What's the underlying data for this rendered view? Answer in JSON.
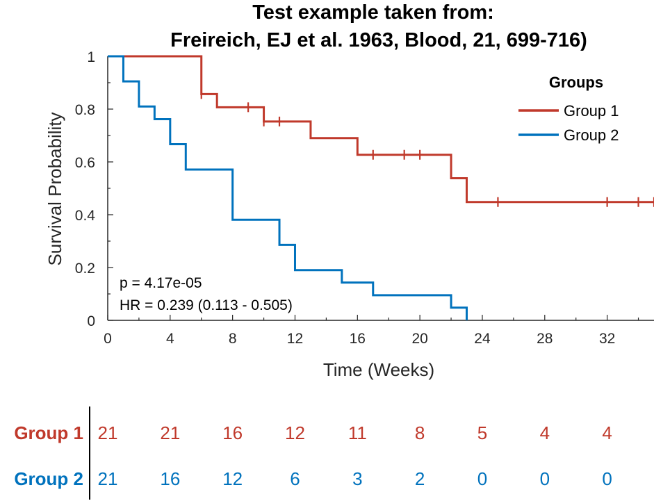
{
  "chart_data": {
    "type": "line",
    "subtype": "kaplan-meier",
    "title_line1": "Test example taken from:",
    "title_line2": "Freireich, EJ et al. 1963, Blood, 21, 699-716)",
    "xlabel": "Time (Weeks)",
    "ylabel": "Survival Probability",
    "xlim": [
      0,
      35
    ],
    "ylim": [
      0,
      1
    ],
    "xticks": [
      0,
      4,
      8,
      12,
      16,
      20,
      24,
      28,
      32
    ],
    "yticks": [
      0,
      0.2,
      0.4,
      0.6,
      0.8,
      1
    ],
    "grid": false,
    "legend": {
      "title": "Groups",
      "placement": "top-right"
    },
    "annotations": [
      "p = 4.17e-05",
      "HR = 0.239 (0.113 - 0.505)"
    ],
    "series": [
      {
        "name": "Group 1",
        "color": "#C0392B",
        "steps": [
          [
            0,
            1
          ],
          [
            6,
            0.857
          ],
          [
            7,
            0.807
          ],
          [
            10,
            0.753
          ],
          [
            13,
            0.69
          ],
          [
            16,
            0.627
          ],
          [
            22,
            0.538
          ],
          [
            23,
            0.448
          ],
          [
            35,
            0.448
          ]
        ],
        "censored": [
          [
            6,
            0.857
          ],
          [
            9,
            0.807
          ],
          [
            10,
            0.753
          ],
          [
            11,
            0.753
          ],
          [
            17,
            0.627
          ],
          [
            19,
            0.627
          ],
          [
            20,
            0.627
          ],
          [
            25,
            0.448
          ],
          [
            32,
            0.448
          ],
          [
            34,
            0.448
          ],
          [
            35,
            0.448
          ]
        ]
      },
      {
        "name": "Group 2",
        "color": "#0072BD",
        "steps": [
          [
            0,
            1
          ],
          [
            1,
            0.905
          ],
          [
            2,
            0.81
          ],
          [
            3,
            0.762
          ],
          [
            4,
            0.667
          ],
          [
            5,
            0.571
          ],
          [
            8,
            0.381
          ],
          [
            11,
            0.286
          ],
          [
            12,
            0.19
          ],
          [
            15,
            0.143
          ],
          [
            17,
            0.095
          ],
          [
            22,
            0.048
          ],
          [
            23,
            0
          ]
        ],
        "censored": []
      }
    ],
    "risk_table": {
      "times": [
        0,
        4,
        8,
        12,
        16,
        20,
        24,
        28,
        32
      ],
      "rows": [
        {
          "label": "Group 1",
          "color": "#C0392B",
          "values": [
            "21",
            "21",
            "16",
            "12",
            "11",
            "8",
            "5",
            "4",
            "4"
          ]
        },
        {
          "label": "Group 2",
          "color": "#0072BD",
          "values": [
            "21",
            "16",
            "12",
            "6",
            "3",
            "2",
            "0",
            "0",
            "0"
          ]
        }
      ]
    }
  }
}
